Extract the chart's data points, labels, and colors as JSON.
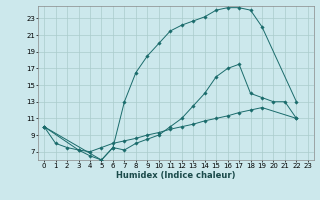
{
  "title": "",
  "xlabel": "Humidex (Indice chaleur)",
  "background_color": "#cce8ec",
  "grid_color": "#aacccc",
  "line_color": "#1a6b6b",
  "xlim": [
    -0.5,
    23.5
  ],
  "ylim": [
    6,
    24.5
  ],
  "xticks": [
    0,
    1,
    2,
    3,
    4,
    5,
    6,
    7,
    8,
    9,
    10,
    11,
    12,
    13,
    14,
    15,
    16,
    17,
    18,
    19,
    20,
    21,
    22,
    23
  ],
  "yticks": [
    7,
    9,
    11,
    13,
    15,
    17,
    19,
    21,
    23
  ],
  "line1_x": [
    0,
    1,
    2,
    3,
    4,
    5,
    6,
    7,
    8,
    9,
    10,
    11,
    12,
    13,
    14,
    15,
    16,
    17,
    18,
    19,
    22
  ],
  "line1_y": [
    10,
    8,
    7.5,
    7.2,
    7.0,
    7.5,
    8.0,
    8.3,
    8.6,
    9.0,
    9.3,
    9.7,
    10.0,
    10.3,
    10.7,
    11.0,
    11.3,
    11.7,
    12.0,
    12.3,
    11.0
  ],
  "line2_x": [
    0,
    3,
    4,
    5,
    6,
    7,
    8,
    9,
    10,
    11,
    12,
    13,
    14,
    15,
    16,
    17,
    18,
    19,
    22
  ],
  "line2_y": [
    10,
    7.2,
    6.5,
    6.0,
    7.5,
    13.0,
    16.5,
    18.5,
    20.0,
    21.5,
    22.2,
    22.7,
    23.2,
    24.0,
    24.3,
    24.3,
    24.0,
    22.0,
    13.0
  ],
  "line3_x": [
    0,
    5,
    6,
    7,
    8,
    9,
    10,
    11,
    12,
    13,
    14,
    15,
    16,
    17,
    18,
    19,
    20,
    21,
    22
  ],
  "line3_y": [
    10,
    6.0,
    7.5,
    7.2,
    8.0,
    8.5,
    9.0,
    10.0,
    11.0,
    12.5,
    14.0,
    16.0,
    17.0,
    17.5,
    14.0,
    13.5,
    13.0,
    13.0,
    11.0
  ]
}
